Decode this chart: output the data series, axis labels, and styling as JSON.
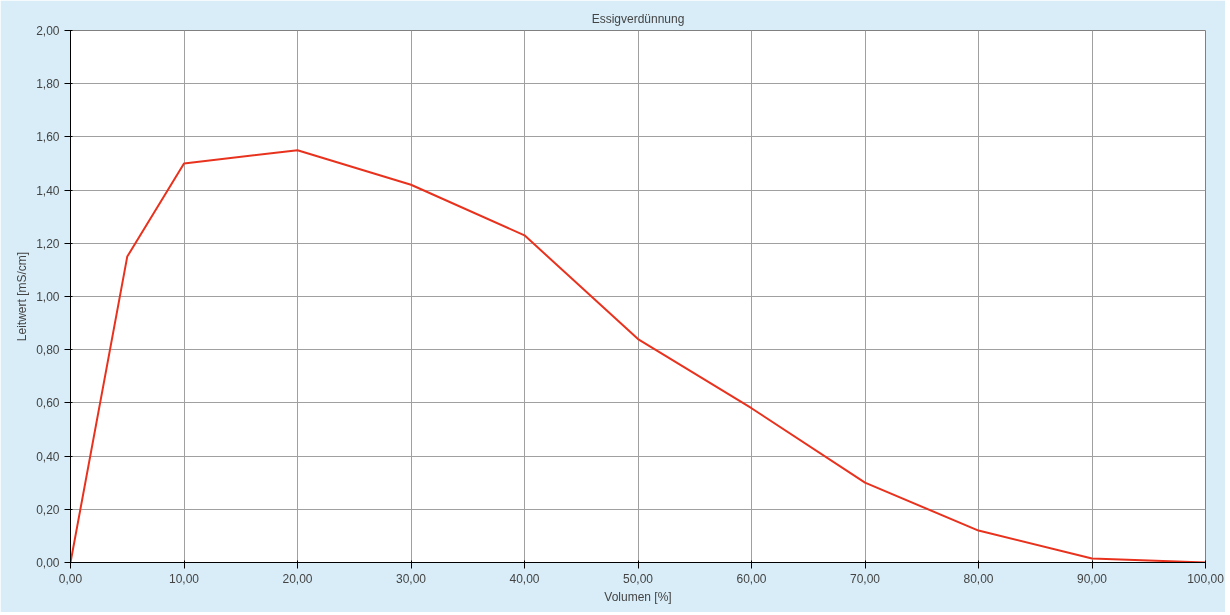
{
  "chart_data": {
    "type": "line",
    "title": "Essigverdünnung",
    "xlabel": "Volumen [%]",
    "ylabel": "Leitwert [mS/cm]",
    "x": [
      0,
      5,
      10,
      20,
      30,
      40,
      50,
      60,
      70,
      80,
      90,
      100
    ],
    "series": [
      {
        "color": "#e8321e",
        "values": [
          0,
          1.15,
          1.5,
          1.55,
          1.42,
          1.23,
          0.84,
          0.58,
          0.3,
          0.12,
          0.015,
          0
        ]
      }
    ],
    "xlim": [
      0,
      100
    ],
    "ylim": [
      0,
      2
    ],
    "xticks": [
      {
        "value": 0,
        "label": "0,00"
      },
      {
        "value": 10,
        "label": "10,00"
      },
      {
        "value": 20,
        "label": "20,00"
      },
      {
        "value": 30,
        "label": "30,00"
      },
      {
        "value": 40,
        "label": "40,00"
      },
      {
        "value": 50,
        "label": "50,00"
      },
      {
        "value": 60,
        "label": "60,00"
      },
      {
        "value": 70,
        "label": "70,00"
      },
      {
        "value": 80,
        "label": "80,00"
      },
      {
        "value": 90,
        "label": "90,00"
      },
      {
        "value": 100,
        "label": "100,00"
      }
    ],
    "yticks": [
      {
        "value": 0,
        "label": "0,00"
      },
      {
        "value": 0.2,
        "label": "0,20"
      },
      {
        "value": 0.4,
        "label": "0,40"
      },
      {
        "value": 0.6,
        "label": "0,60"
      },
      {
        "value": 0.8,
        "label": "0,80"
      },
      {
        "value": 1.0,
        "label": "1,00"
      },
      {
        "value": 1.2,
        "label": "1,20"
      },
      {
        "value": 1.4,
        "label": "1,40"
      },
      {
        "value": 1.6,
        "label": "1,60"
      },
      {
        "value": 1.8,
        "label": "1,80"
      },
      {
        "value": 2.0,
        "label": "2,00"
      }
    ],
    "grid": true,
    "marker": "none",
    "line_style": "solid"
  }
}
